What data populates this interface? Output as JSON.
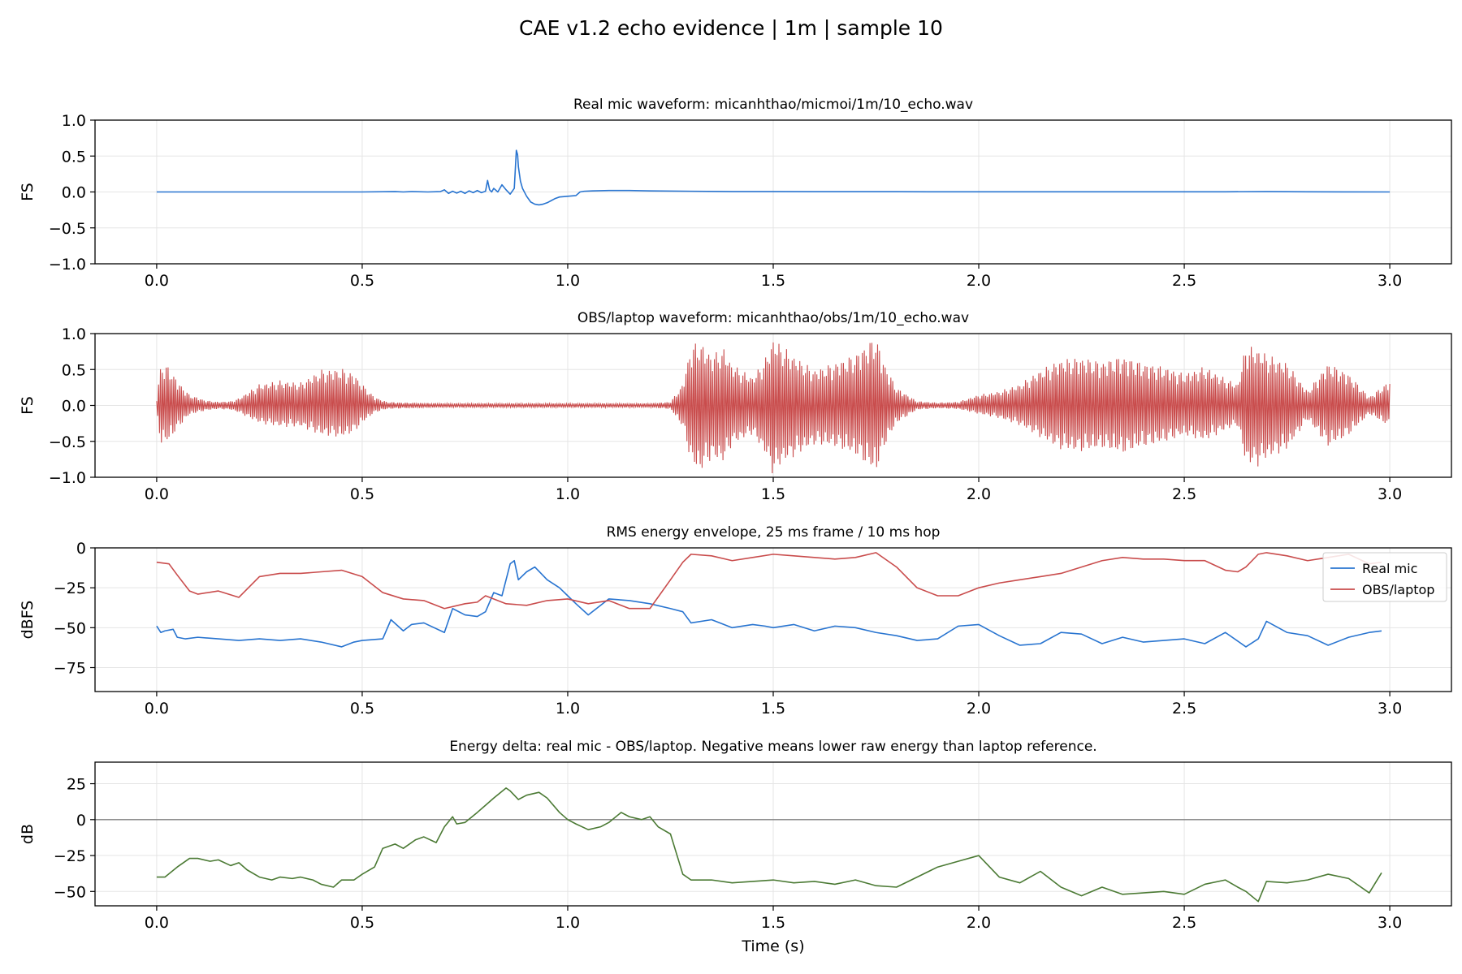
{
  "figure": {
    "title": "CAE v1.2 echo evidence | 1m | sample 10"
  },
  "colors": {
    "real": "#2874d0",
    "obs": "#c94c4c",
    "delta": "#4b7a34",
    "zero_line": "#808080"
  },
  "chart_data": [
    {
      "id": "real",
      "type": "line",
      "title": "Real mic waveform: micanhthao/micmoi/1m/10_echo.wav",
      "xlabel": "",
      "ylabel": "FS",
      "xlim": [
        -0.15,
        3.15
      ],
      "ylim": [
        -1.0,
        1.0
      ],
      "xticks": [
        0.0,
        0.5,
        1.0,
        1.5,
        2.0,
        2.5,
        3.0
      ],
      "xtick_labels": [
        "0.0",
        "0.5",
        "1.0",
        "1.5",
        "2.0",
        "2.5",
        "3.0"
      ],
      "yticks": [
        -1.0,
        -0.5,
        0.0,
        0.5,
        1.0
      ],
      "ytick_labels": [
        "−1.0",
        "−0.5",
        "0.0",
        "0.5",
        "1.0"
      ],
      "grid": true,
      "series": [
        {
          "color_key": "real",
          "x": [
            0,
            0.1,
            0.2,
            0.3,
            0.4,
            0.5,
            0.58,
            0.6,
            0.62,
            0.66,
            0.69,
            0.7,
            0.71,
            0.72,
            0.73,
            0.74,
            0.75,
            0.76,
            0.77,
            0.78,
            0.79,
            0.8,
            0.805,
            0.81,
            0.815,
            0.82,
            0.83,
            0.84,
            0.85,
            0.86,
            0.87,
            0.875,
            0.878,
            0.88,
            0.885,
            0.89,
            0.9,
            0.91,
            0.92,
            0.93,
            0.94,
            0.95,
            0.96,
            0.97,
            0.98,
            1.0,
            1.02,
            1.03,
            1.04,
            1.06,
            1.1,
            1.15,
            1.2,
            1.3,
            1.4,
            1.5,
            1.6,
            1.7,
            1.8,
            2.0,
            2.2,
            2.4,
            2.6,
            2.7,
            2.8,
            3.0
          ],
          "y": [
            0,
            0,
            0,
            0,
            0,
            0,
            0.005,
            0,
            0.005,
            0,
            0.005,
            0.03,
            -0.02,
            0.01,
            -0.015,
            0.01,
            -0.02,
            0.015,
            -0.01,
            0.02,
            -0.01,
            0.01,
            0.16,
            0.03,
            0.0,
            0.05,
            0.0,
            0.1,
            0.03,
            -0.03,
            0.05,
            0.58,
            0.52,
            0.35,
            0.15,
            0.05,
            -0.06,
            -0.14,
            -0.17,
            -0.18,
            -0.17,
            -0.15,
            -0.12,
            -0.09,
            -0.07,
            -0.06,
            -0.05,
            0.0,
            0.01,
            0.015,
            0.02,
            0.02,
            0.015,
            0.01,
            0.005,
            0.005,
            0.003,
            0.003,
            0.003,
            0.002,
            0.002,
            0.002,
            0.002,
            0.005,
            0.002,
            0.0
          ]
        }
      ]
    },
    {
      "id": "obs",
      "type": "line",
      "title": "OBS/laptop waveform: micanhthao/obs/1m/10_echo.wav",
      "xlabel": "",
      "ylabel": "FS",
      "xlim": [
        -0.15,
        3.15
      ],
      "ylim": [
        -1.0,
        1.0
      ],
      "xticks": [
        0.0,
        0.5,
        1.0,
        1.5,
        2.0,
        2.5,
        3.0
      ],
      "xtick_labels": [
        "0.0",
        "0.5",
        "1.0",
        "1.5",
        "2.0",
        "2.5",
        "3.0"
      ],
      "yticks": [
        -1.0,
        -0.5,
        0.0,
        0.5,
        1.0
      ],
      "ytick_labels": [
        "−1.0",
        "−0.5",
        "0.0",
        "0.5",
        "1.0"
      ],
      "grid": true,
      "envelope": {
        "color_key": "obs",
        "x": [
          0,
          0.01,
          0.03,
          0.05,
          0.08,
          0.12,
          0.15,
          0.18,
          0.2,
          0.25,
          0.3,
          0.35,
          0.4,
          0.45,
          0.48,
          0.5,
          0.53,
          0.56,
          0.6,
          0.7,
          0.8,
          0.9,
          1.0,
          1.1,
          1.2,
          1.25,
          1.28,
          1.3,
          1.32,
          1.35,
          1.38,
          1.4,
          1.45,
          1.48,
          1.5,
          1.52,
          1.55,
          1.6,
          1.65,
          1.7,
          1.73,
          1.75,
          1.77,
          1.8,
          1.85,
          1.9,
          1.95,
          2.0,
          2.05,
          2.1,
          2.15,
          2.2,
          2.25,
          2.3,
          2.35,
          2.4,
          2.45,
          2.5,
          2.55,
          2.6,
          2.63,
          2.65,
          2.68,
          2.7,
          2.75,
          2.8,
          2.85,
          2.9,
          2.95,
          3.0
        ],
        "upper": [
          0.1,
          0.58,
          0.55,
          0.35,
          0.15,
          0.07,
          0.05,
          0.06,
          0.1,
          0.3,
          0.35,
          0.32,
          0.5,
          0.52,
          0.45,
          0.3,
          0.12,
          0.05,
          0.04,
          0.03,
          0.03,
          0.03,
          0.03,
          0.03,
          0.03,
          0.05,
          0.3,
          0.85,
          0.9,
          0.72,
          0.8,
          0.58,
          0.4,
          0.65,
          0.95,
          0.85,
          0.7,
          0.5,
          0.6,
          0.72,
          0.88,
          0.98,
          0.6,
          0.25,
          0.06,
          0.04,
          0.05,
          0.15,
          0.2,
          0.3,
          0.5,
          0.65,
          0.68,
          0.62,
          0.7,
          0.6,
          0.55,
          0.45,
          0.55,
          0.38,
          0.3,
          0.85,
          0.8,
          0.72,
          0.6,
          0.2,
          0.6,
          0.45,
          0.12,
          0.35
        ],
        "lower": [
          -0.1,
          -0.55,
          -0.5,
          -0.33,
          -0.13,
          -0.07,
          -0.05,
          -0.06,
          -0.1,
          -0.25,
          -0.3,
          -0.3,
          -0.42,
          -0.45,
          -0.38,
          -0.25,
          -0.1,
          -0.05,
          -0.04,
          -0.03,
          -0.03,
          -0.03,
          -0.03,
          -0.03,
          -0.03,
          -0.05,
          -0.3,
          -0.8,
          -0.95,
          -0.75,
          -0.8,
          -0.55,
          -0.4,
          -0.68,
          -0.98,
          -0.82,
          -0.72,
          -0.55,
          -0.58,
          -0.7,
          -0.85,
          -0.95,
          -0.58,
          -0.25,
          -0.06,
          -0.04,
          -0.05,
          -0.12,
          -0.18,
          -0.28,
          -0.45,
          -0.62,
          -0.65,
          -0.6,
          -0.68,
          -0.58,
          -0.52,
          -0.42,
          -0.5,
          -0.35,
          -0.28,
          -0.82,
          -0.85,
          -0.75,
          -0.62,
          -0.2,
          -0.58,
          -0.42,
          -0.12,
          -0.3
        ]
      }
    },
    {
      "id": "rms",
      "type": "line",
      "title": "RMS energy envelope, 25 ms frame / 10 ms hop",
      "xlabel": "",
      "ylabel": "dBFS",
      "xlim": [
        -0.15,
        3.15
      ],
      "ylim": [
        -90,
        0
      ],
      "xticks": [
        0.0,
        0.5,
        1.0,
        1.5,
        2.0,
        2.5,
        3.0
      ],
      "xtick_labels": [
        "0.0",
        "0.5",
        "1.0",
        "1.5",
        "2.0",
        "2.5",
        "3.0"
      ],
      "yticks": [
        -75,
        -50,
        -25,
        0
      ],
      "ytick_labels": [
        "−75",
        "−50",
        "−25",
        "0"
      ],
      "grid": true,
      "legend": "top-right",
      "series": [
        {
          "name": "Real mic",
          "color_key": "real",
          "x": [
            0,
            0.01,
            0.02,
            0.04,
            0.05,
            0.07,
            0.1,
            0.15,
            0.2,
            0.25,
            0.3,
            0.35,
            0.4,
            0.45,
            0.48,
            0.5,
            0.55,
            0.57,
            0.6,
            0.62,
            0.65,
            0.7,
            0.72,
            0.75,
            0.78,
            0.8,
            0.82,
            0.84,
            0.86,
            0.87,
            0.88,
            0.9,
            0.92,
            0.95,
            0.98,
            1.0,
            1.02,
            1.05,
            1.1,
            1.15,
            1.2,
            1.25,
            1.28,
            1.3,
            1.35,
            1.4,
            1.45,
            1.48,
            1.5,
            1.55,
            1.6,
            1.65,
            1.7,
            1.75,
            1.8,
            1.85,
            1.9,
            1.95,
            2.0,
            2.05,
            2.1,
            2.15,
            2.2,
            2.25,
            2.3,
            2.35,
            2.4,
            2.45,
            2.5,
            2.55,
            2.6,
            2.65,
            2.68,
            2.7,
            2.75,
            2.8,
            2.85,
            2.9,
            2.95,
            2.98
          ],
          "y": [
            -49,
            -53,
            -52,
            -51,
            -56,
            -57,
            -56,
            -57,
            -58,
            -57,
            -58,
            -57,
            -59,
            -62,
            -59,
            -58,
            -57,
            -45,
            -52,
            -48,
            -47,
            -53,
            -38,
            -42,
            -43,
            -40,
            -28,
            -30,
            -10,
            -8,
            -20,
            -15,
            -12,
            -20,
            -25,
            -30,
            -35,
            -42,
            -32,
            -33,
            -35,
            -38,
            -40,
            -47,
            -45,
            -50,
            -48,
            -49,
            -50,
            -48,
            -52,
            -49,
            -50,
            -53,
            -55,
            -58,
            -57,
            -49,
            -48,
            -55,
            -61,
            -60,
            -53,
            -54,
            -60,
            -56,
            -59,
            -58,
            -57,
            -60,
            -53,
            -62,
            -57,
            -46,
            -53,
            -55,
            -61,
            -56,
            -53,
            -52
          ]
        },
        {
          "name": "OBS/laptop",
          "color_key": "obs",
          "x": [
            0,
            0.03,
            0.05,
            0.08,
            0.1,
            0.15,
            0.2,
            0.25,
            0.3,
            0.35,
            0.4,
            0.45,
            0.5,
            0.55,
            0.6,
            0.65,
            0.7,
            0.75,
            0.78,
            0.8,
            0.85,
            0.9,
            0.95,
            1.0,
            1.05,
            1.1,
            1.15,
            1.2,
            1.25,
            1.28,
            1.3,
            1.35,
            1.4,
            1.45,
            1.5,
            1.55,
            1.6,
            1.65,
            1.7,
            1.75,
            1.8,
            1.85,
            1.9,
            1.95,
            2.0,
            2.05,
            2.1,
            2.15,
            2.2,
            2.25,
            2.3,
            2.35,
            2.4,
            2.45,
            2.5,
            2.55,
            2.6,
            2.63,
            2.65,
            2.68,
            2.7,
            2.75,
            2.8,
            2.85,
            2.9,
            2.95,
            2.98
          ],
          "y": [
            -9,
            -10,
            -17,
            -27,
            -29,
            -27,
            -31,
            -18,
            -16,
            -16,
            -15,
            -14,
            -18,
            -28,
            -32,
            -33,
            -38,
            -35,
            -34,
            -30,
            -35,
            -36,
            -33,
            -32,
            -35,
            -33,
            -38,
            -38,
            -20,
            -9,
            -4,
            -5,
            -8,
            -6,
            -4,
            -5,
            -6,
            -7,
            -6,
            -3,
            -12,
            -25,
            -30,
            -30,
            -25,
            -22,
            -20,
            -18,
            -16,
            -12,
            -8,
            -6,
            -7,
            -7,
            -8,
            -8,
            -14,
            -15,
            -12,
            -4,
            -3,
            -5,
            -8,
            -6,
            -4,
            -10,
            -9
          ]
        }
      ]
    },
    {
      "id": "delta",
      "type": "line",
      "title": "Energy delta: real mic - OBS/laptop. Negative means lower raw energy than laptop reference.",
      "xlabel": "Time (s)",
      "ylabel": "dB",
      "xlim": [
        -0.15,
        3.15
      ],
      "ylim": [
        -60,
        40
      ],
      "xticks": [
        0.0,
        0.5,
        1.0,
        1.5,
        2.0,
        2.5,
        3.0
      ],
      "xtick_labels": [
        "0.0",
        "0.5",
        "1.0",
        "1.5",
        "2.0",
        "2.5",
        "3.0"
      ],
      "yticks": [
        -50,
        -25,
        0,
        25
      ],
      "ytick_labels": [
        "−50",
        "−25",
        "0",
        "25"
      ],
      "grid": true,
      "hline": 0,
      "series": [
        {
          "color_key": "delta",
          "x": [
            0,
            0.02,
            0.05,
            0.08,
            0.1,
            0.13,
            0.15,
            0.18,
            0.2,
            0.22,
            0.25,
            0.28,
            0.3,
            0.33,
            0.35,
            0.38,
            0.4,
            0.43,
            0.45,
            0.48,
            0.5,
            0.53,
            0.55,
            0.58,
            0.6,
            0.63,
            0.65,
            0.68,
            0.7,
            0.72,
            0.73,
            0.75,
            0.78,
            0.8,
            0.82,
            0.85,
            0.86,
            0.88,
            0.9,
            0.93,
            0.95,
            0.98,
            1.0,
            1.02,
            1.05,
            1.08,
            1.1,
            1.13,
            1.15,
            1.18,
            1.2,
            1.22,
            1.25,
            1.28,
            1.3,
            1.35,
            1.4,
            1.45,
            1.5,
            1.55,
            1.6,
            1.65,
            1.7,
            1.75,
            1.8,
            1.85,
            1.9,
            1.95,
            2.0,
            2.05,
            2.1,
            2.15,
            2.2,
            2.25,
            2.3,
            2.35,
            2.4,
            2.45,
            2.5,
            2.55,
            2.6,
            2.63,
            2.65,
            2.68,
            2.7,
            2.75,
            2.8,
            2.85,
            2.9,
            2.95,
            2.98
          ],
          "y": [
            -40,
            -40,
            -33,
            -27,
            -27,
            -29,
            -28,
            -32,
            -30,
            -35,
            -40,
            -42,
            -40,
            -41,
            -40,
            -42,
            -45,
            -47,
            -42,
            -42,
            -38,
            -33,
            -20,
            -17,
            -20,
            -14,
            -12,
            -16,
            -5,
            2,
            -3,
            -2,
            5,
            10,
            15,
            22,
            20,
            14,
            17,
            19,
            15,
            5,
            0,
            -3,
            -7,
            -5,
            -2,
            5,
            2,
            0,
            2,
            -5,
            -10,
            -38,
            -42,
            -42,
            -44,
            -43,
            -42,
            -44,
            -43,
            -45,
            -42,
            -46,
            -47,
            -40,
            -33,
            -29,
            -25,
            -40,
            -44,
            -36,
            -47,
            -53,
            -47,
            -52,
            -51,
            -50,
            -52,
            -45,
            -42,
            -47,
            -50,
            -57,
            -43,
            -44,
            -42,
            -38,
            -41,
            -51,
            -37
          ]
        }
      ]
    }
  ]
}
